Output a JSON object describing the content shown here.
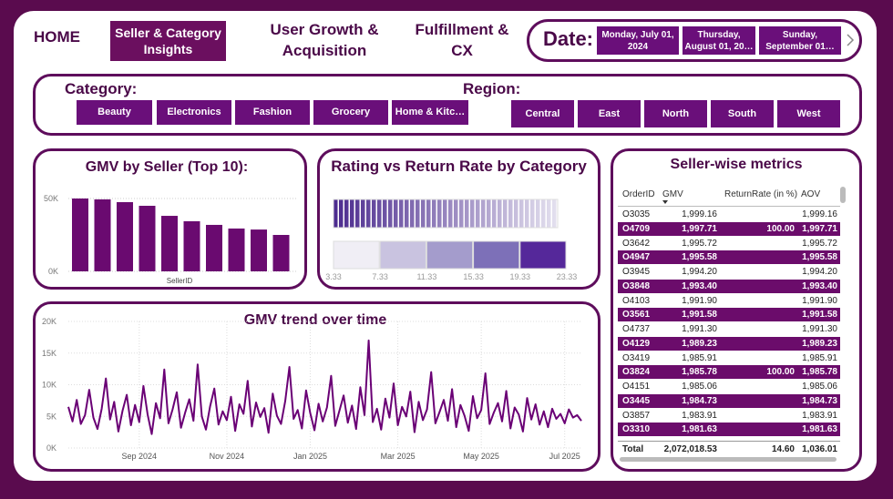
{
  "nav": {
    "home": "HOME",
    "tabs": [
      "Seller & Category Insights",
      "User Growth & Acquisition",
      "Fulfillment & CX"
    ]
  },
  "date_filter": {
    "label": "Date:",
    "options": [
      "Monday, July 01, 2024",
      "Thursday, August 01, 20…",
      "Sunday, September 01…"
    ]
  },
  "category_filter": {
    "label": "Category:",
    "options": [
      "Beauty",
      "Electronics",
      "Fashion",
      "Grocery",
      "Home & Kitc…"
    ]
  },
  "region_filter": {
    "label": "Region:",
    "options": [
      "Central",
      "East",
      "North",
      "South",
      "West"
    ]
  },
  "chart_data": [
    {
      "type": "bar",
      "title": "GMV by Seller (Top 10):",
      "x_label": "SellerID",
      "color": "#6a0a70",
      "categories": [
        null,
        null,
        null,
        null,
        null,
        null,
        null,
        null,
        null,
        null
      ],
      "values": [
        50000,
        49400,
        47500,
        45000,
        38100,
        34400,
        31900,
        29400,
        28700,
        25000
      ],
      "ylim": [
        0,
        55000
      ],
      "yticks": [
        {
          "value": 0,
          "label": "0K"
        },
        {
          "value": 50000,
          "label": "50K"
        }
      ],
      "grid": true
    },
    {
      "type": "heatmap",
      "title": "Rating vs Return Rate by Category",
      "xlim": [
        3.33,
        23.33
      ],
      "xticks": [
        3.33,
        7.33,
        11.33,
        15.33,
        19.33,
        23.33
      ],
      "colors": [
        "#f0eef5",
        "#c9c3e0",
        "#a49ccc",
        "#7d70b8",
        "#55289a"
      ]
    },
    {
      "type": "line",
      "title": "GMV trend over time",
      "color": "#6a0075",
      "values": [
        6500,
        4200,
        7600,
        3800,
        5200,
        9200,
        4800,
        3000,
        6200,
        11000,
        4500,
        7300,
        2600,
        5900,
        8400,
        3600,
        6800,
        4100,
        9800,
        5300,
        2200,
        7100,
        4700,
        12400,
        3900,
        6100,
        8800,
        3200,
        5600,
        7700,
        4300,
        13200,
        5000,
        2900,
        6600,
        9400,
        3700,
        5800,
        4400,
        8100,
        2700,
        6900,
        5400,
        10600,
        3400,
        7200,
        4900,
        6300,
        2400,
        8600,
        5100,
        3800,
        7400,
        12800,
        4600,
        6000,
        3100,
        9100,
        5500,
        2800,
        7000,
        4200,
        6400,
        11400,
        3500,
        5900,
        8300,
        4000,
        6700,
        3000,
        9600,
        5200,
        17000,
        4100,
        6200,
        2900,
        7800,
        4800,
        10200,
        3600,
        6500,
        5000,
        8900,
        2500,
        7300,
        4400,
        6100,
        12000,
        3900,
        5700,
        7600,
        4300,
        9300,
        3300,
        6800,
        5100,
        2700,
        8200,
        4700,
        6000,
        11800,
        3800,
        5600,
        7100,
        4200,
        9000,
        3100,
        6400,
        5300,
        2600,
        7900,
        4500,
        6900,
        3700,
        5800,
        3300,
        6200,
        4600,
        5400,
        3900,
        6100,
        4800,
        5200,
        4300
      ],
      "xlim": [
        0,
        123
      ],
      "xticks": [
        {
          "value": 17,
          "label": "Sep 2024"
        },
        {
          "value": 38,
          "label": "Nov 2024"
        },
        {
          "value": 58,
          "label": "Jan 2025"
        },
        {
          "value": 79,
          "label": "Mar 2025"
        },
        {
          "value": 99,
          "label": "May 2025"
        },
        {
          "value": 119,
          "label": "Jul 2025"
        }
      ],
      "ylim": [
        0,
        20000
      ],
      "yticks": [
        {
          "value": 0,
          "label": "0K"
        },
        {
          "value": 5000,
          "label": "5K"
        },
        {
          "value": 10000,
          "label": "10K"
        },
        {
          "value": 15000,
          "label": "15K"
        },
        {
          "value": 20000,
          "label": "20K"
        }
      ],
      "grid": true
    }
  ],
  "table": {
    "title": "Seller-wise metrics",
    "columns": [
      "OrderID",
      "GMV",
      "ReturnRate (in %)",
      "AOV"
    ],
    "rows": [
      [
        "O3035",
        "1,999.16",
        null,
        "1,999.16"
      ],
      [
        "O4709",
        "1,997.71",
        "100.00",
        "1,997.71"
      ],
      [
        "O3642",
        "1,995.72",
        null,
        "1,995.72"
      ],
      [
        "O4947",
        "1,995.58",
        null,
        "1,995.58"
      ],
      [
        "O3945",
        "1,994.20",
        null,
        "1,994.20"
      ],
      [
        "O3848",
        "1,993.40",
        null,
        "1,993.40"
      ],
      [
        "O4103",
        "1,991.90",
        null,
        "1,991.90"
      ],
      [
        "O3561",
        "1,991.58",
        null,
        "1,991.58"
      ],
      [
        "O4737",
        "1,991.30",
        null,
        "1,991.30"
      ],
      [
        "O4129",
        "1,989.23",
        null,
        "1,989.23"
      ],
      [
        "O3419",
        "1,985.91",
        null,
        "1,985.91"
      ],
      [
        "O3824",
        "1,985.78",
        "100.00",
        "1,985.78"
      ],
      [
        "O4151",
        "1,985.06",
        null,
        "1,985.06"
      ],
      [
        "O3445",
        "1,984.73",
        null,
        "1,984.73"
      ],
      [
        "O3857",
        "1,983.91",
        null,
        "1,983.91"
      ],
      [
        "O3310",
        "1,981.63",
        null,
        "1,981.63"
      ]
    ],
    "total": [
      "Total",
      "2,072,018.53",
      "14.60",
      "1,036.01"
    ]
  }
}
